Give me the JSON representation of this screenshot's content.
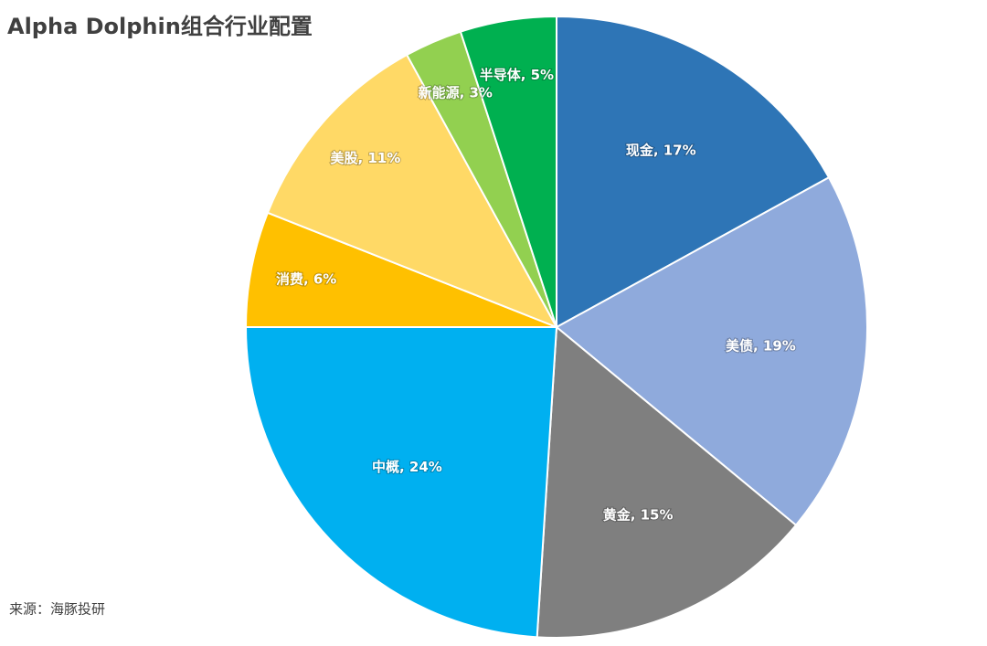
{
  "chart_data": {
    "type": "pie",
    "title": "Alpha Dolphin组合行业配置",
    "source": "来源：海豚投研",
    "values": [
      17,
      19,
      15,
      24,
      6,
      11,
      3,
      5
    ],
    "value_labels": [
      "现金, 17%",
      "美债, 19%",
      "黄金, 15%",
      "中概, 24%",
      "消费, 6%",
      "美股, 11%",
      "新能源, 3%",
      "半导体, 5%"
    ],
    "colors": [
      "#2e75b6",
      "#8faadc",
      "#7f7f7f",
      "#00b0f0",
      "#ffc000",
      "#ffd966",
      "#92d050",
      "#00b050"
    ]
  }
}
